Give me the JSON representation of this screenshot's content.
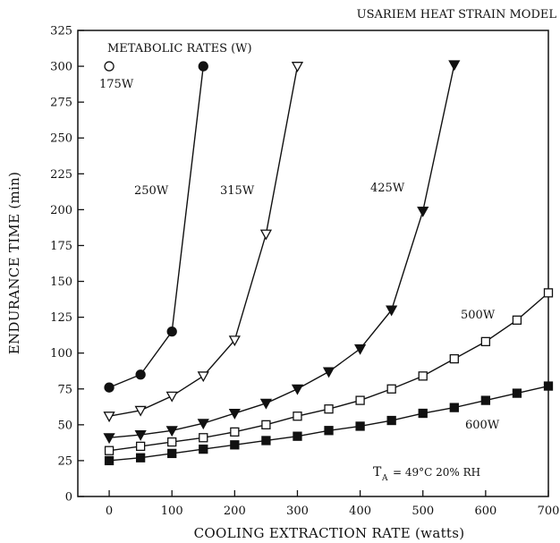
{
  "chart_data": {
    "type": "line",
    "title": "USARIEM HEAT STRAIN MODEL",
    "xlabel": "COOLING EXTRACTION RATE (watts)",
    "ylabel": "ENDURANCE TIME (min)",
    "xlim": [
      -50,
      700
    ],
    "ylim": [
      0,
      325
    ],
    "xticks": [
      0,
      100,
      200,
      300,
      400,
      500,
      600,
      700
    ],
    "yticks": [
      0,
      25,
      50,
      75,
      100,
      125,
      150,
      175,
      200,
      225,
      250,
      275,
      300,
      325
    ],
    "grid": false,
    "legend_title": "METABOLIC RATES (W)",
    "condition_text": "= 49°C 20% RH",
    "condition_symbol": "T",
    "condition_subscript": "A",
    "series": [
      {
        "name": "175W",
        "marker": "open-circle",
        "x": [
          0
        ],
        "y": [
          300
        ]
      },
      {
        "name": "250W",
        "marker": "filled-circle",
        "x": [
          0,
          50,
          100,
          150
        ],
        "y": [
          76,
          85,
          115,
          300
        ]
      },
      {
        "name": "315W",
        "marker": "open-triangle-down",
        "x": [
          0,
          50,
          100,
          150,
          200,
          250,
          300
        ],
        "y": [
          56,
          60,
          70,
          84,
          109,
          183,
          300
        ]
      },
      {
        "name": "425W",
        "marker": "filled-triangle-down",
        "x": [
          0,
          50,
          100,
          150,
          200,
          250,
          300,
          350,
          400,
          450,
          500,
          550
        ],
        "y": [
          41,
          43,
          46,
          51,
          58,
          65,
          75,
          87,
          103,
          130,
          199,
          301
        ]
      },
      {
        "name": "500W",
        "marker": "open-square",
        "x": [
          0,
          50,
          100,
          150,
          200,
          250,
          300,
          350,
          400,
          450,
          500,
          550,
          600,
          650,
          700
        ],
        "y": [
          32,
          35,
          38,
          41,
          45,
          50,
          56,
          61,
          67,
          75,
          84,
          96,
          108,
          123,
          142
        ]
      },
      {
        "name": "600W",
        "marker": "filled-square",
        "x": [
          0,
          50,
          100,
          150,
          200,
          250,
          300,
          350,
          400,
          450,
          500,
          550,
          600,
          650,
          700
        ],
        "y": [
          25,
          27,
          30,
          33,
          36,
          39,
          42,
          46,
          49,
          53,
          58,
          62,
          67,
          72,
          77
        ]
      }
    ]
  }
}
